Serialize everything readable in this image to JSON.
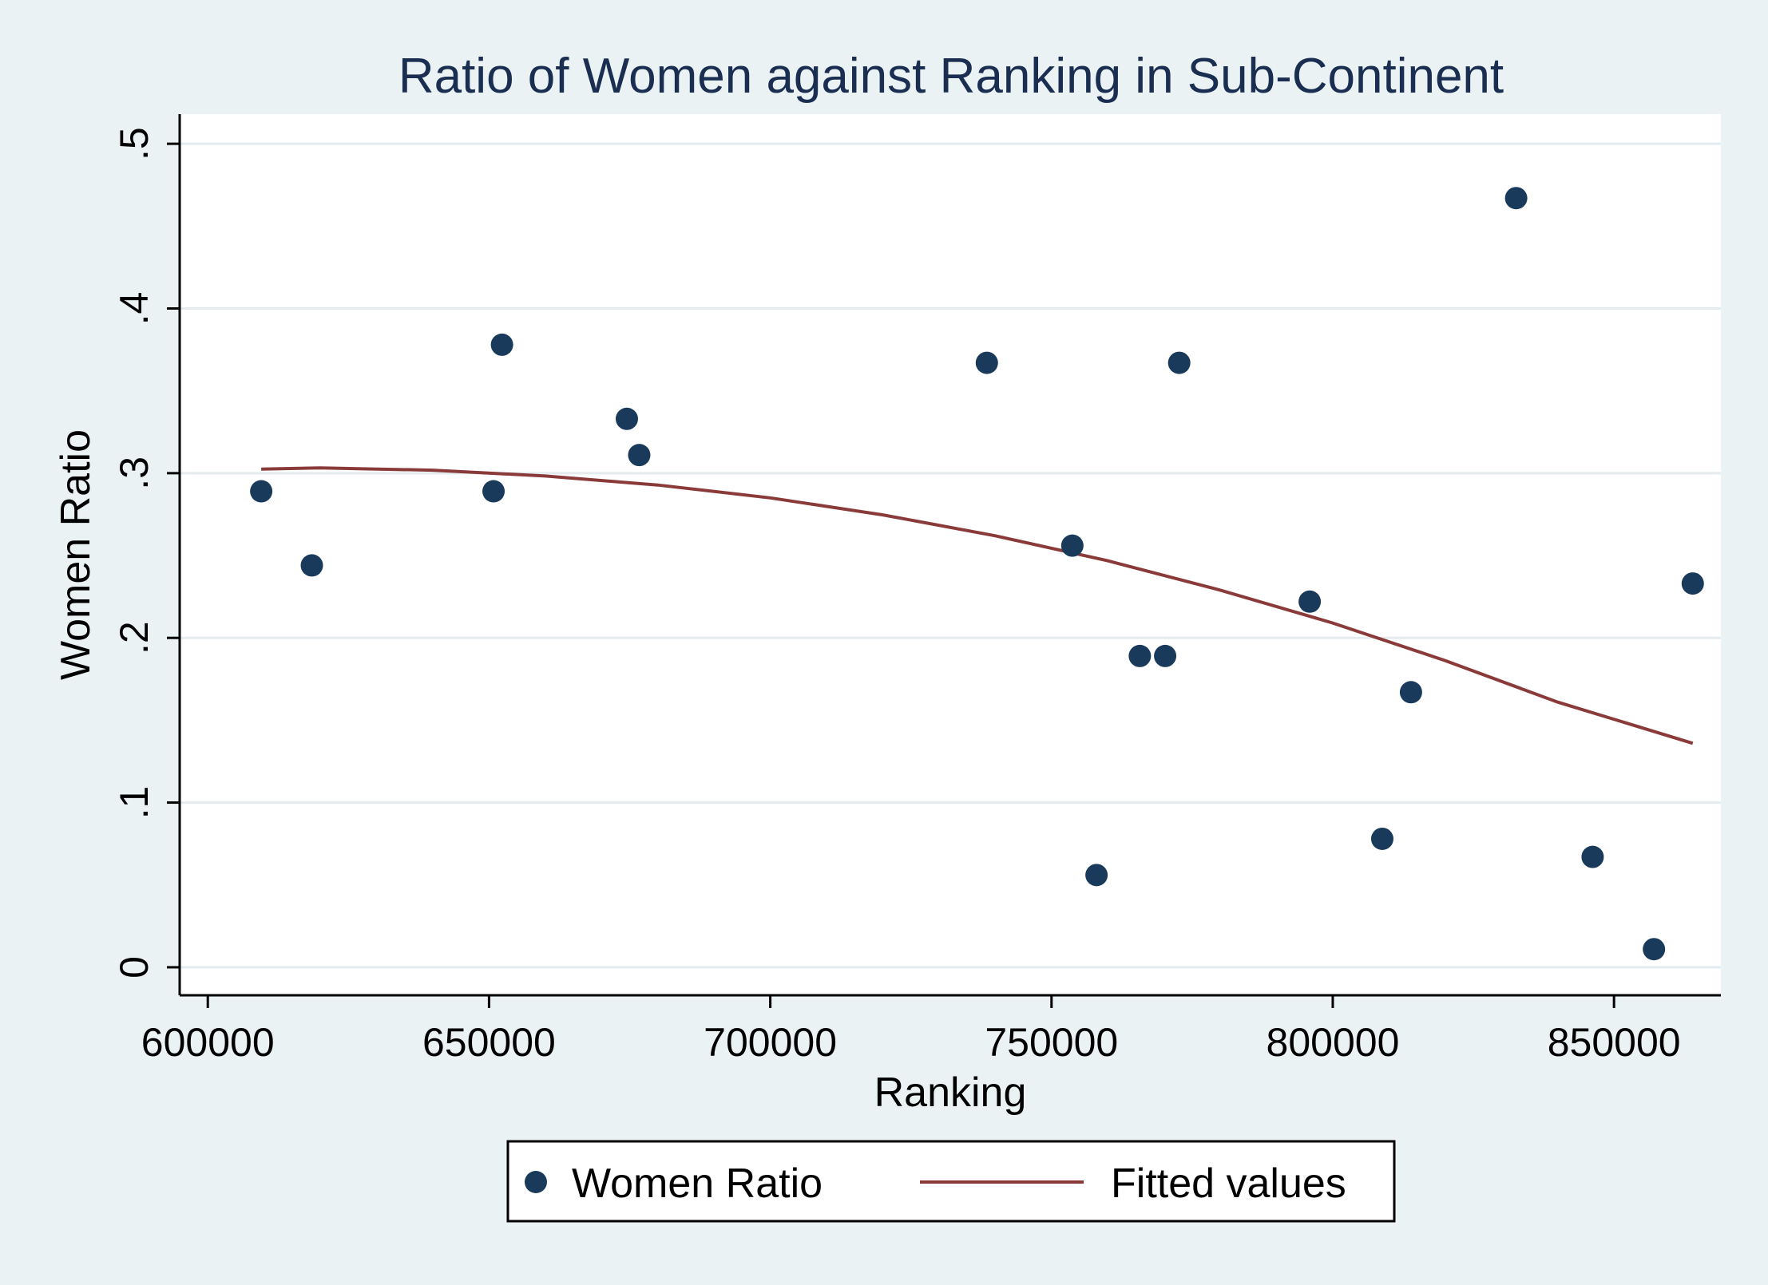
{
  "chart_data": {
    "type": "scatter",
    "title": "Ratio of Women against Ranking in Sub-Continent",
    "xlabel": "Ranking",
    "ylabel": "Women Ratio",
    "xlim": [
      595000,
      869000
    ],
    "ylim": [
      -0.017,
      0.518
    ],
    "xticks": [
      600000,
      650000,
      700000,
      750000,
      800000,
      850000
    ],
    "xtick_labels": [
      "600000",
      "650000",
      "700000",
      "750000",
      "800000",
      "850000"
    ],
    "yticks": [
      0,
      0.1,
      0.2,
      0.3,
      0.4,
      0.5
    ],
    "ytick_labels": [
      "0",
      ".1",
      ".2",
      ".3",
      ".4",
      ".5"
    ],
    "grid": true,
    "legend_position": "bottom",
    "series": [
      {
        "name": "Women Ratio",
        "kind": "scatter",
        "color": "#1a3a5c",
        "points": [
          [
            609500,
            0.289
          ],
          [
            618500,
            0.244
          ],
          [
            650800,
            0.289
          ],
          [
            652300,
            0.378
          ],
          [
            674500,
            0.333
          ],
          [
            676700,
            0.311
          ],
          [
            738500,
            0.367
          ],
          [
            753700,
            0.256
          ],
          [
            758000,
            0.056
          ],
          [
            765700,
            0.189
          ],
          [
            770200,
            0.189
          ],
          [
            772700,
            0.367
          ],
          [
            795900,
            0.222
          ],
          [
            808800,
            0.078
          ],
          [
            813900,
            0.167
          ],
          [
            832600,
            0.467
          ],
          [
            846200,
            0.067
          ],
          [
            857100,
            0.011
          ],
          [
            864000,
            0.233
          ]
        ]
      },
      {
        "name": "Fitted values",
        "kind": "line",
        "color": "#8b3a3a",
        "points": [
          [
            609500,
            0.3025
          ],
          [
            620000,
            0.3032
          ],
          [
            640000,
            0.3018
          ],
          [
            660000,
            0.2983
          ],
          [
            680000,
            0.2928
          ],
          [
            700000,
            0.285
          ],
          [
            720000,
            0.2747
          ],
          [
            740000,
            0.262
          ],
          [
            760000,
            0.2468
          ],
          [
            780000,
            0.229
          ],
          [
            800000,
            0.209
          ],
          [
            820000,
            0.1862
          ],
          [
            840000,
            0.161
          ],
          [
            864000,
            0.136
          ]
        ]
      }
    ]
  },
  "colors": {
    "background": "#eaf2f3",
    "plot_background": "#ffffff",
    "gridline": "#e4ecef",
    "marker": "#1a3a5c",
    "fit_line": "#8b3a3a",
    "title": "#1a2e52"
  }
}
